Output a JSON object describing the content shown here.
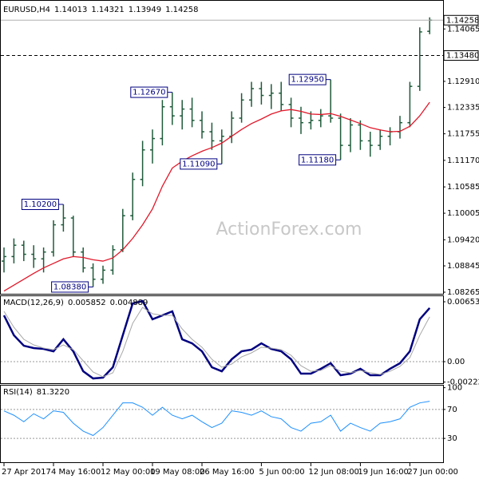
{
  "chart_data": [
    {
      "type": "ohlc",
      "title": "EURUSD,H4",
      "color": "#1f5b3b",
      "categories": [
        "27 Apr 2017",
        null,
        null,
        null,
        null,
        "4 May 16:00",
        null,
        null,
        null,
        null,
        "12 May 00:00",
        null,
        null,
        null,
        null,
        "19 May 08:00",
        null,
        null,
        null,
        null,
        "26 May 16:00",
        null,
        null,
        null,
        null,
        null,
        "5 Jun 00:00",
        null,
        null,
        null,
        null,
        "12 Jun 08:00",
        null,
        null,
        null,
        null,
        "19 Jun 16:00",
        null,
        null,
        null,
        null,
        "27 Jun 00:00",
        null,
        null
      ],
      "open": [
        1.0895,
        1.0905,
        1.093,
        1.091,
        1.09,
        1.0915,
        1.0975,
        1.099,
        1.0915,
        1.088,
        1.0855,
        1.0875,
        1.092,
        1.0995,
        1.1075,
        1.114,
        1.1165,
        1.1235,
        1.1215,
        1.123,
        1.1205,
        1.118,
        1.116,
        1.117,
        1.121,
        1.125,
        1.1275,
        1.126,
        1.1265,
        1.124,
        1.121,
        1.12,
        1.1205,
        1.1215,
        1.121,
        1.115,
        1.1195,
        1.116,
        1.115,
        1.117,
        1.118,
        1.12,
        1.128,
        1.14013
      ],
      "high": [
        1.0925,
        1.0945,
        1.094,
        1.093,
        1.0925,
        1.0985,
        1.102,
        1.0995,
        1.0925,
        1.089,
        1.0885,
        1.093,
        1.101,
        1.109,
        1.116,
        1.1185,
        1.125,
        1.1267,
        1.125,
        1.1255,
        1.1225,
        1.12,
        1.1185,
        1.1225,
        1.1265,
        1.129,
        1.129,
        1.1285,
        1.129,
        1.1255,
        1.1235,
        1.1225,
        1.123,
        1.1295,
        1.122,
        1.121,
        1.1205,
        1.118,
        1.1185,
        1.119,
        1.1215,
        1.129,
        1.141,
        1.14321
      ],
      "low": [
        1.087,
        1.089,
        1.0895,
        1.088,
        1.087,
        1.0905,
        1.096,
        1.0905,
        1.087,
        1.0838,
        1.0845,
        1.0865,
        1.0915,
        1.0985,
        1.106,
        1.111,
        1.115,
        1.1195,
        1.1185,
        1.119,
        1.1165,
        1.114,
        1.1109,
        1.1155,
        1.12,
        1.1235,
        1.124,
        1.123,
        1.1225,
        1.119,
        1.1175,
        1.1185,
        1.119,
        1.12,
        1.1118,
        1.1135,
        1.114,
        1.1125,
        1.114,
        1.115,
        1.1165,
        1.119,
        1.127,
        1.13949
      ],
      "close": [
        1.0905,
        1.093,
        1.091,
        1.09,
        1.0915,
        1.0975,
        1.099,
        1.0915,
        1.088,
        1.0855,
        1.0875,
        1.092,
        1.0995,
        1.1075,
        1.114,
        1.1165,
        1.1235,
        1.1215,
        1.123,
        1.1205,
        1.118,
        1.116,
        1.117,
        1.121,
        1.125,
        1.1275,
        1.126,
        1.1265,
        1.124,
        1.121,
        1.12,
        1.1205,
        1.1215,
        1.121,
        1.115,
        1.1195,
        1.116,
        1.115,
        1.117,
        1.118,
        1.12,
        1.128,
        1.14,
        1.14258
      ],
      "moving_average": {
        "color": "#e0182a",
        "values": [
          1.0829,
          1.0842,
          1.0855,
          1.0868,
          1.088,
          1.089,
          1.09,
          1.0905,
          1.0903,
          1.0898,
          1.0895,
          1.0902,
          1.092,
          1.0945,
          1.0975,
          1.101,
          1.106,
          1.11,
          1.1115,
          1.1127,
          1.1137,
          1.1145,
          1.1155,
          1.117,
          1.1185,
          1.1198,
          1.1208,
          1.1219,
          1.1226,
          1.1229,
          1.1225,
          1.1219,
          1.1218,
          1.122,
          1.1214,
          1.1206,
          1.1198,
          1.1189,
          1.1184,
          1.118,
          1.1181,
          1.1192,
          1.1215,
          1.1245
        ]
      },
      "ylim": [
        1.0823,
        1.1465
      ],
      "yticks": [
        1.14065,
        {
          "value": 1.1291,
          "label": "1.12910"
        },
        1.12335,
        1.11755,
        {
          "value": 1.1117,
          "label": "1.11170"
        },
        1.10585,
        1.10005,
        {
          "value": 1.0942,
          "label": "1.09420"
        },
        1.08845,
        1.08265
      ],
      "levels": [
        {
          "value": 1.1348,
          "label": "1.13480"
        }
      ],
      "annotations": [
        {
          "bar": 6,
          "value": 1.102,
          "label": "1.10200"
        },
        {
          "bar": 9,
          "value": 1.0838,
          "label": "1.08380"
        },
        {
          "bar": 17,
          "value": 1.1267,
          "label": "1.12670"
        },
        {
          "bar": 22,
          "value": 1.1109,
          "label": "1.11090"
        },
        {
          "bar": 33,
          "value": 1.1295,
          "label": "1.12950"
        },
        {
          "bar": 34,
          "value": 1.1118,
          "label": "1.11180"
        }
      ],
      "watermark": "ActionForex.com"
    },
    {
      "type": "line",
      "title": "MACD(12,26,9)",
      "series": [
        {
          "color": "#000080",
          "values": [
            0.00505,
            0.00288,
            0.00174,
            0.00148,
            0.00139,
            0.00113,
            0.00244,
            0.00113,
            -0.00105,
            -0.00183,
            -0.00174,
            -0.00061,
            0.00288,
            0.00636,
            0.00662,
            0.00462,
            0.00505,
            0.00549,
            0.00244,
            0.002,
            0.00113,
            -0.00061,
            -0.00105,
            0.00026,
            0.00113,
            0.00131,
            0.002,
            0.00139,
            0.00113,
            0.00026,
            -0.00131,
            -0.00131,
            -0.00078,
            -0.00017,
            -0.00148,
            -0.00131,
            -0.00078,
            -0.00148,
            -0.00148,
            -0.00078,
            -0.00017,
            0.00113,
            0.00462,
            0.005852
          ]
        },
        {
          "color": "#a8a8a8",
          "values": [
            0.00549,
            0.00375,
            0.00244,
            0.00183,
            0.00148,
            0.00131,
            0.00183,
            0.00131,
            9e-05,
            -0.00113,
            -0.00165,
            -0.00122,
            0.00113,
            0.00418,
            0.00592,
            0.00523,
            0.00505,
            0.00505,
            0.00357,
            0.00244,
            0.00157,
            0.00026,
            -0.00061,
            -0.00026,
            0.00052,
            0.00096,
            0.00157,
            0.00148,
            0.00131,
            0.0007,
            -0.00044,
            -0.00105,
            -0.00096,
            -0.00044,
            -0.00105,
            -0.00122,
            -0.00096,
            -0.00122,
            -0.00139,
            -0.00105,
            -0.00052,
            0.00044,
            0.00288,
            0.004889
          ]
        }
      ],
      "ylim": [
        -0.00235,
        0.00723
      ],
      "yticks": [
        0.006534,
        {
          "value": 0,
          "label": "0.00"
        },
        -0.002226
      ],
      "levels": [
        0
      ]
    },
    {
      "type": "line",
      "title": "RSI(14)",
      "readout": {
        "value": 81.322,
        "label": "81.3220"
      },
      "series": [
        {
          "color": "#1e90ff",
          "values": [
            68,
            62,
            53,
            64,
            57,
            68,
            66,
            51,
            40,
            34,
            45,
            62,
            79,
            79,
            73,
            62,
            73,
            62,
            57,
            62,
            53,
            45,
            51,
            68,
            66,
            62,
            68,
            60,
            57,
            45,
            40,
            51,
            53,
            62,
            40,
            51,
            45,
            40,
            51,
            53,
            57,
            73,
            79,
            81.322
          ]
        }
      ],
      "ylim": [
        -4,
        104
      ],
      "yticks": [
        100,
        70,
        30
      ],
      "levels": [
        70,
        30
      ]
    }
  ]
}
